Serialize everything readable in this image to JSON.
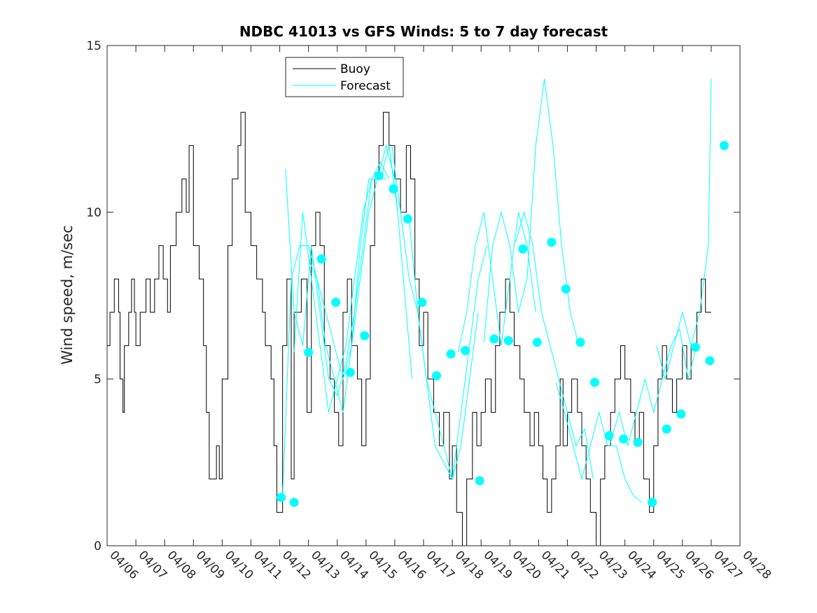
{
  "chart_data": {
    "type": "line",
    "title": "NDBC 41013 vs GFS Winds: 5 to 7 day forecast",
    "xlabel": "",
    "ylabel": "Wind speed, m/sec",
    "xlim": [
      "04/06",
      "04/28"
    ],
    "ylim": [
      0,
      15
    ],
    "x_ticks": [
      "04/06",
      "04/07",
      "04/08",
      "04/09",
      "04/10",
      "04/11",
      "04/12",
      "04/13",
      "04/14",
      "04/15",
      "04/16",
      "04/17",
      "04/18",
      "04/19",
      "04/20",
      "04/21",
      "04/22",
      "04/23",
      "04/24",
      "04/25",
      "04/26",
      "04/27",
      "04/28"
    ],
    "y_ticks": [
      "0",
      "5",
      "10",
      "15"
    ],
    "grid": false,
    "legend": {
      "placement": "top-left",
      "entries": [
        "Buoy",
        "Forecast"
      ]
    },
    "series": [
      {
        "name": "Buoy",
        "color": "#000000",
        "style": "step",
        "points": [
          [
            0.0,
            6
          ],
          [
            0.1,
            7
          ],
          [
            0.25,
            8
          ],
          [
            0.4,
            7
          ],
          [
            0.45,
            5
          ],
          [
            0.55,
            4
          ],
          [
            0.6,
            6
          ],
          [
            0.75,
            7
          ],
          [
            0.85,
            8
          ],
          [
            0.95,
            7
          ],
          [
            1.0,
            6
          ],
          [
            1.15,
            7
          ],
          [
            1.35,
            8
          ],
          [
            1.5,
            7
          ],
          [
            1.65,
            8
          ],
          [
            1.8,
            9
          ],
          [
            1.95,
            8
          ],
          [
            2.1,
            7
          ],
          [
            2.2,
            9
          ],
          [
            2.4,
            10
          ],
          [
            2.6,
            11
          ],
          [
            2.75,
            10
          ],
          [
            2.85,
            12
          ],
          [
            3.0,
            9
          ],
          [
            3.2,
            8
          ],
          [
            3.35,
            6
          ],
          [
            3.45,
            4
          ],
          [
            3.55,
            2
          ],
          [
            3.8,
            3
          ],
          [
            3.9,
            2
          ],
          [
            4.0,
            5
          ],
          [
            4.2,
            9
          ],
          [
            4.35,
            11
          ],
          [
            4.55,
            12
          ],
          [
            4.65,
            13
          ],
          [
            4.8,
            10
          ],
          [
            5.0,
            9
          ],
          [
            5.2,
            8
          ],
          [
            5.4,
            7
          ],
          [
            5.5,
            6
          ],
          [
            5.7,
            5
          ],
          [
            5.8,
            3
          ],
          [
            5.9,
            1
          ],
          [
            6.1,
            6
          ],
          [
            6.25,
            8
          ],
          [
            6.4,
            2
          ],
          [
            6.5,
            7
          ],
          [
            6.75,
            8
          ],
          [
            6.95,
            4
          ],
          [
            7.1,
            9
          ],
          [
            7.25,
            10
          ],
          [
            7.4,
            9
          ],
          [
            7.55,
            6
          ],
          [
            7.75,
            5
          ],
          [
            7.9,
            4
          ],
          [
            8.05,
            3
          ],
          [
            8.2,
            7
          ],
          [
            8.35,
            8
          ],
          [
            8.5,
            6
          ],
          [
            8.7,
            5
          ],
          [
            8.85,
            3
          ],
          [
            9.0,
            5
          ],
          [
            9.15,
            9
          ],
          [
            9.3,
            11
          ],
          [
            9.45,
            12
          ],
          [
            9.6,
            13
          ],
          [
            9.8,
            12
          ],
          [
            10.0,
            11
          ],
          [
            10.2,
            10
          ],
          [
            10.4,
            12
          ],
          [
            10.55,
            11
          ],
          [
            10.7,
            8
          ],
          [
            10.85,
            6
          ],
          [
            11.0,
            7
          ],
          [
            11.15,
            5
          ],
          [
            11.35,
            4
          ],
          [
            11.55,
            3
          ],
          [
            11.7,
            4
          ],
          [
            11.9,
            2
          ],
          [
            12.0,
            3
          ],
          [
            12.15,
            1
          ],
          [
            12.35,
            0
          ],
          [
            12.5,
            2
          ],
          [
            12.7,
            4
          ],
          [
            12.85,
            3
          ],
          [
            13.0,
            4
          ],
          [
            13.15,
            5
          ],
          [
            13.35,
            4
          ],
          [
            13.5,
            6
          ],
          [
            13.65,
            7
          ],
          [
            13.85,
            8
          ],
          [
            14.0,
            7
          ],
          [
            14.15,
            6
          ],
          [
            14.35,
            5
          ],
          [
            14.5,
            4
          ],
          [
            14.7,
            3
          ],
          [
            14.85,
            4
          ],
          [
            15.0,
            3
          ],
          [
            15.15,
            2
          ],
          [
            15.3,
            1
          ],
          [
            15.45,
            2
          ],
          [
            15.6,
            3
          ],
          [
            15.75,
            5
          ],
          [
            15.85,
            3
          ],
          [
            16.0,
            4
          ],
          [
            16.15,
            5
          ],
          [
            16.35,
            4
          ],
          [
            16.5,
            3
          ],
          [
            16.65,
            2
          ],
          [
            16.8,
            1
          ],
          [
            17.0,
            0
          ],
          [
            17.15,
            2
          ],
          [
            17.3,
            3
          ],
          [
            17.5,
            4
          ],
          [
            17.65,
            5
          ],
          [
            17.85,
            6
          ],
          [
            18.0,
            5
          ],
          [
            18.2,
            4
          ],
          [
            18.35,
            3
          ],
          [
            18.5,
            4
          ],
          [
            18.65,
            2
          ],
          [
            18.85,
            1
          ],
          [
            19.0,
            3
          ],
          [
            19.15,
            5
          ],
          [
            19.3,
            6
          ],
          [
            19.45,
            5
          ],
          [
            19.65,
            4
          ],
          [
            19.8,
            5
          ],
          [
            20.0,
            6
          ],
          [
            20.15,
            5
          ],
          [
            20.3,
            6
          ],
          [
            20.5,
            7
          ],
          [
            20.65,
            8
          ],
          [
            20.8,
            7
          ],
          [
            21.0,
            7
          ]
        ]
      },
      {
        "name": "Forecast",
        "color": "#00ffff",
        "style": "multi-line",
        "lines": [
          [
            [
              6.1,
              1.5
            ],
            [
              6.4,
              8
            ],
            [
              6.7,
              9
            ],
            [
              7.0,
              9
            ],
            [
              7.3,
              8
            ],
            [
              7.6,
              7
            ],
            [
              7.9,
              6
            ],
            [
              8.2,
              5
            ],
            [
              8.5,
              6
            ],
            [
              8.8,
              8
            ],
            [
              9.1,
              10
            ],
            [
              9.4,
              11
            ],
            [
              9.7,
              11
            ]
          ],
          [
            [
              6.2,
              11.3
            ],
            [
              6.5,
              7
            ],
            [
              6.8,
              6
            ],
            [
              7.1,
              9
            ],
            [
              7.4,
              7
            ],
            [
              7.7,
              5
            ],
            [
              8.0,
              4.5
            ],
            [
              8.3,
              5.5
            ],
            [
              8.6,
              7
            ],
            [
              8.9,
              9
            ],
            [
              9.2,
              11
            ],
            [
              9.5,
              11.5
            ],
            [
              9.8,
              11
            ]
          ],
          [
            [
              6.5,
              5.8
            ],
            [
              6.8,
              10
            ],
            [
              7.1,
              8
            ],
            [
              7.4,
              6
            ],
            [
              7.7,
              4
            ],
            [
              8.0,
              5
            ],
            [
              8.3,
              6
            ],
            [
              8.6,
              8
            ],
            [
              8.9,
              10
            ],
            [
              9.2,
              11
            ],
            [
              9.5,
              11
            ],
            [
              9.8,
              12
            ],
            [
              10.1,
              10
            ]
          ],
          [
            [
              7.0,
              8.6
            ],
            [
              7.3,
              8
            ],
            [
              7.6,
              6
            ],
            [
              7.9,
              5
            ],
            [
              8.2,
              4
            ],
            [
              8.5,
              6
            ],
            [
              8.8,
              9
            ],
            [
              9.1,
              11
            ],
            [
              9.4,
              11
            ],
            [
              9.7,
              12
            ],
            [
              10.0,
              11
            ],
            [
              10.3,
              8
            ],
            [
              10.6,
              5
            ]
          ],
          [
            [
              9.9,
              12
            ],
            [
              10.2,
              10
            ],
            [
              10.5,
              8
            ],
            [
              10.8,
              7
            ],
            [
              11.1,
              5
            ],
            [
              11.4,
              4
            ],
            [
              11.7,
              3
            ],
            [
              12.0,
              2
            ],
            [
              12.3,
              3
            ],
            [
              12.6,
              5
            ],
            [
              12.9,
              7
            ]
          ],
          [
            [
              10.5,
              9.8
            ],
            [
              10.8,
              7
            ],
            [
              11.1,
              5
            ],
            [
              11.4,
              3
            ],
            [
              11.7,
              2.5
            ],
            [
              12.0,
              2
            ],
            [
              12.3,
              4
            ],
            [
              12.6,
              6
            ],
            [
              12.9,
              8
            ],
            [
              13.2,
              9
            ]
          ],
          [
            [
              12.2,
              5.8
            ],
            [
              12.5,
              7
            ],
            [
              12.8,
              9
            ],
            [
              13.1,
              10
            ],
            [
              13.4,
              8
            ],
            [
              13.7,
              6
            ],
            [
              14.0,
              8
            ],
            [
              14.3,
              10
            ],
            [
              14.6,
              9
            ],
            [
              14.9,
              7
            ]
          ],
          [
            [
              13.1,
              6.1
            ],
            [
              13.4,
              9
            ],
            [
              13.7,
              10
            ],
            [
              14.0,
              9
            ],
            [
              14.3,
              7
            ],
            [
              14.6,
              8
            ],
            [
              14.9,
              12
            ],
            [
              15.2,
              14
            ],
            [
              15.5,
              12
            ],
            [
              15.8,
              9
            ],
            [
              16.1,
              7
            ],
            [
              16.4,
              6
            ]
          ],
          [
            [
              14.2,
              9.1
            ],
            [
              14.5,
              10
            ],
            [
              14.8,
              9
            ],
            [
              15.1,
              7
            ],
            [
              15.4,
              6
            ],
            [
              15.7,
              5
            ],
            [
              16.0,
              4
            ],
            [
              16.3,
              3
            ],
            [
              16.6,
              3.5
            ],
            [
              16.9,
              2
            ]
          ],
          [
            [
              15.6,
              4.9
            ],
            [
              15.9,
              4
            ],
            [
              16.2,
              3
            ],
            [
              16.5,
              2
            ],
            [
              16.8,
              3
            ],
            [
              17.1,
              4
            ],
            [
              17.4,
              3
            ],
            [
              17.7,
              3
            ],
            [
              18.0,
              2
            ],
            [
              18.3,
              1.5
            ],
            [
              18.6,
              1.3
            ]
          ],
          [
            [
              17.5,
              3.1
            ],
            [
              17.8,
              4
            ],
            [
              18.1,
              3
            ],
            [
              18.4,
              4
            ],
            [
              18.7,
              5
            ],
            [
              19.0,
              4
            ],
            [
              19.3,
              5
            ],
            [
              19.6,
              6
            ],
            [
              19.9,
              6.5
            ],
            [
              20.2,
              5
            ],
            [
              20.5,
              6
            ]
          ],
          [
            [
              19.1,
              6
            ],
            [
              19.4,
              5
            ],
            [
              19.7,
              6
            ],
            [
              20.0,
              7
            ],
            [
              20.3,
              6
            ],
            [
              20.6,
              7
            ],
            [
              20.9,
              9
            ],
            [
              21.0,
              14
            ]
          ]
        ]
      },
      {
        "name": "Forecast markers",
        "color": "#00ffff",
        "style": "markers",
        "points": [
          [
            6.05,
            1.45
          ],
          [
            6.5,
            1.3
          ],
          [
            7.0,
            5.8
          ],
          [
            7.45,
            8.6
          ],
          [
            7.95,
            7.3
          ],
          [
            8.45,
            5.2
          ],
          [
            8.95,
            6.3
          ],
          [
            9.45,
            11.1
          ],
          [
            9.95,
            10.7
          ],
          [
            10.45,
            9.8
          ],
          [
            10.95,
            7.3
          ],
          [
            11.45,
            5.1
          ],
          [
            11.95,
            5.75
          ],
          [
            12.45,
            5.85
          ],
          [
            12.95,
            1.95
          ],
          [
            13.45,
            6.2
          ],
          [
            13.95,
            6.15
          ],
          [
            14.45,
            8.9
          ],
          [
            14.95,
            6.1
          ],
          [
            15.45,
            9.1
          ],
          [
            15.95,
            7.7
          ],
          [
            16.45,
            6.1
          ],
          [
            16.95,
            4.9
          ],
          [
            17.45,
            3.3
          ],
          [
            17.95,
            3.2
          ],
          [
            18.45,
            3.1
          ],
          [
            18.95,
            1.3
          ],
          [
            19.45,
            3.5
          ],
          [
            19.95,
            3.95
          ],
          [
            20.45,
            5.95
          ],
          [
            20.95,
            5.55
          ],
          [
            21.45,
            12
          ]
        ]
      }
    ]
  }
}
